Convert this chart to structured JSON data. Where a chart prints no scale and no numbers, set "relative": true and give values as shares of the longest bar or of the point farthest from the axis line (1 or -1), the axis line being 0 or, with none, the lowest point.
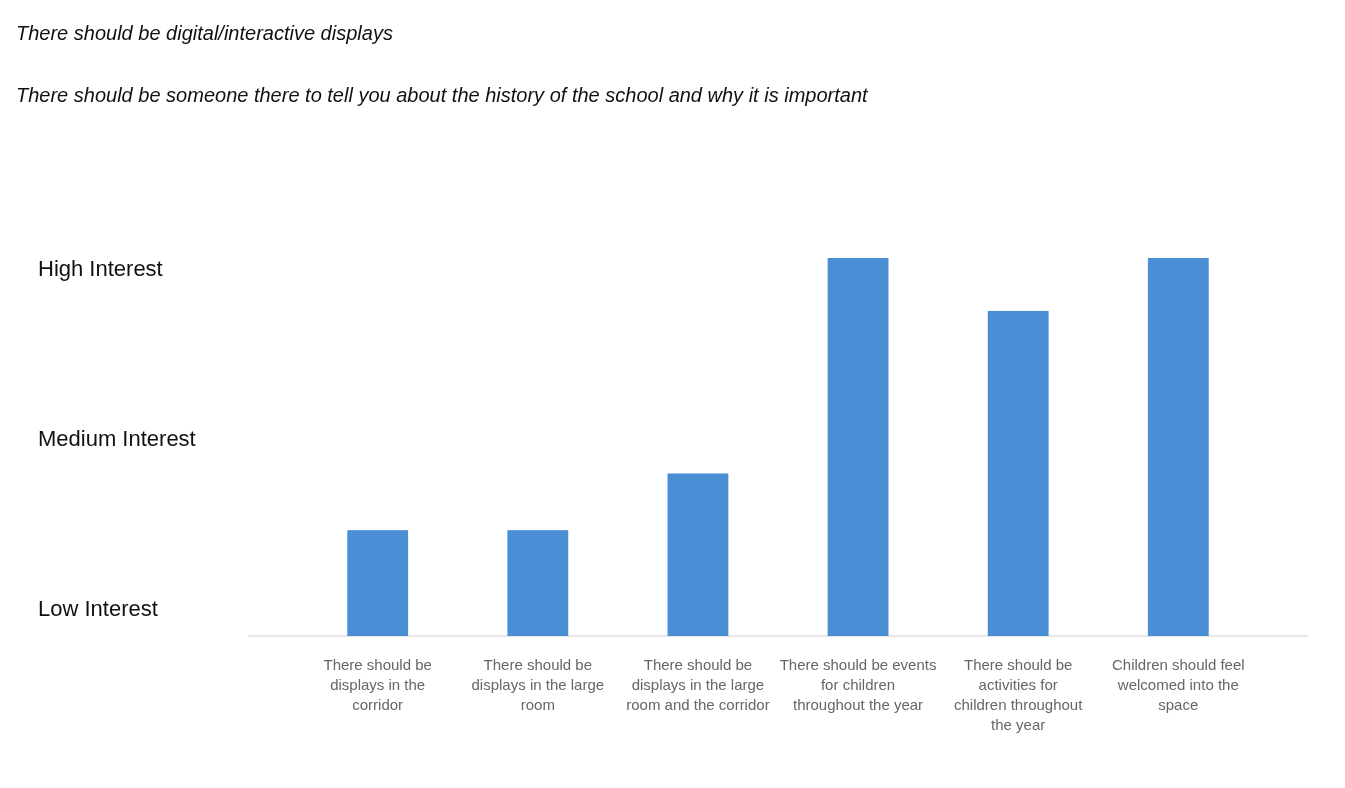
{
  "chart_data": {
    "type": "bar",
    "title": "There should be digital/interactive displays",
    "subtitle": "There should be someone there to tell you about the history of the school and why it is important",
    "categories": [
      "There should be displays in the corridor",
      "There should be displays in the large room",
      "There should be displays in the large room and the corridor",
      "There should be events for children throughout the year",
      "There should be activities for children throughout the year",
      "Children should feel welcomed into the space"
    ],
    "values": [
      0.28,
      0.28,
      0.43,
      1,
      0.86,
      1
    ],
    "color": "#4a8fd6",
    "relative": true,
    "annotations": [
      "Low Interest",
      "Medium Interest",
      "High Interest"
    ]
  }
}
